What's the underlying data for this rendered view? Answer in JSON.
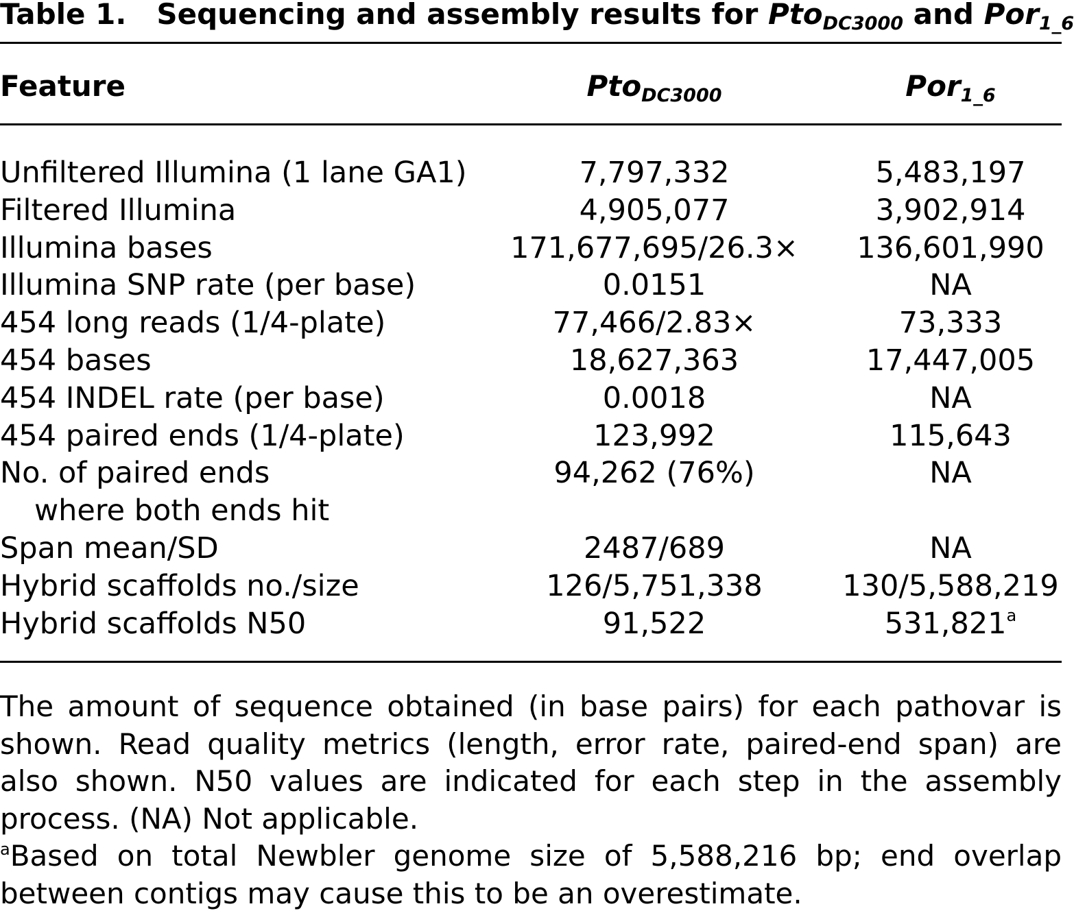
{
  "table": {
    "label": "Table 1.",
    "title_prefix": "Sequencing and assembly results for ",
    "title_sp1": "Pto",
    "title_sp1_sub": "DC3000",
    "title_mid": " and ",
    "title_sp2": "Por",
    "title_sp2_sub": "1_6"
  },
  "columns": {
    "feature": "Feature",
    "c1_name": "Pto",
    "c1_sub": "DC3000",
    "c2_name": "Por",
    "c2_sub": "1_6"
  },
  "rows": [
    {
      "feature": "Unfiltered Illumina (1 lane GA1)",
      "c1": "7,797,332",
      "c2": "5,483,197"
    },
    {
      "feature": "Filtered Illumina",
      "c1": "4,905,077",
      "c2": "3,902,914"
    },
    {
      "feature": "Illumina bases",
      "c1": "171,677,695/26.3×",
      "c2": "136,601,990"
    },
    {
      "feature": "Illumina SNP rate (per base)",
      "c1": "0.0151",
      "c2": "NA"
    },
    {
      "feature": "454 long reads (1/4-plate)",
      "c1": "77,466/2.83×",
      "c2": "73,333"
    },
    {
      "feature": "454 bases",
      "c1": "18,627,363",
      "c2": "17,447,005"
    },
    {
      "feature": "454 INDEL rate (per base)",
      "c1": "0.0018",
      "c2": "NA"
    },
    {
      "feature": "454 paired ends (1/4-plate)",
      "c1": "123,992",
      "c2": "115,643"
    },
    {
      "feature": "No. of paired ends",
      "feature_cont": "where both ends hit",
      "c1": "94,262 (76%)",
      "c2": "NA"
    },
    {
      "feature": "Span mean/SD",
      "c1": "2487/689",
      "c2": "NA"
    },
    {
      "feature": "Hybrid scaffolds no./size",
      "c1": "126/5,751,338",
      "c2": "130/5,588,219"
    },
    {
      "feature": "Hybrid scaffolds N50",
      "c1": "91,522",
      "c2": "531,821",
      "c2_sup": "a"
    }
  ],
  "notes": {
    "main": "The amount of sequence obtained (in base pairs) for each pathovar is shown. Read quality metrics (length, error rate, paired-end span) are also shown. N50 values are indicated for each step in the assembly process. (NA) Not applicable.",
    "footnote_mark": "a",
    "footnote": "Based on total Newbler genome size of 5,588,216 bp; end overlap between contigs may cause this to be an overestimate."
  }
}
